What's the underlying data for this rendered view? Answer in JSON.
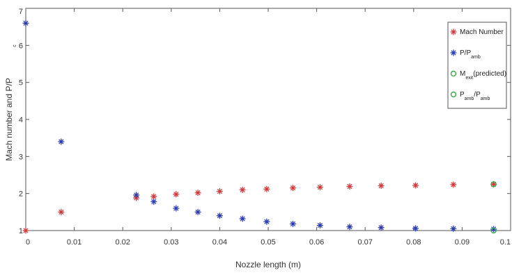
{
  "chart_data": {
    "type": "scatter",
    "xlabel": "Nozzle length (m)",
    "ylabel": "Mach number and P/P",
    "ylabel_sub": "c",
    "xlim": [
      0,
      0.1
    ],
    "ylim": [
      1,
      7
    ],
    "x_ticks": [
      "0",
      "0.01",
      "0.02",
      "0.03",
      "0.04",
      "0.05",
      "0.06",
      "0.07",
      "0.08",
      "0.09",
      "0.1"
    ],
    "y_ticks": [
      "1",
      "2",
      "3",
      "4",
      "5",
      "6",
      "7"
    ],
    "legend_position": "top-right",
    "series": [
      {
        "name": "Mach Number",
        "marker": "star",
        "color": "#d03a3a",
        "points": [
          [
            0.0,
            1.0
          ],
          [
            0.0073,
            1.5
          ],
          [
            0.0228,
            1.88
          ],
          [
            0.0264,
            1.92
          ],
          [
            0.031,
            1.98
          ],
          [
            0.0355,
            2.02
          ],
          [
            0.04,
            2.06
          ],
          [
            0.0447,
            2.1
          ],
          [
            0.0497,
            2.12
          ],
          [
            0.0551,
            2.15
          ],
          [
            0.0607,
            2.17
          ],
          [
            0.0668,
            2.19
          ],
          [
            0.0733,
            2.21
          ],
          [
            0.0804,
            2.22
          ],
          [
            0.0882,
            2.24
          ],
          [
            0.0965,
            2.25
          ]
        ]
      },
      {
        "name": "P/P",
        "name_sub": "amb",
        "marker": "star",
        "color": "#2a3bb0",
        "points": [
          [
            0.0,
            6.6
          ],
          [
            0.0073,
            3.4
          ],
          [
            0.0228,
            1.96
          ],
          [
            0.0264,
            1.78
          ],
          [
            0.031,
            1.6
          ],
          [
            0.0355,
            1.5
          ],
          [
            0.04,
            1.4
          ],
          [
            0.0447,
            1.32
          ],
          [
            0.0497,
            1.24
          ],
          [
            0.0551,
            1.18
          ],
          [
            0.0607,
            1.14
          ],
          [
            0.0668,
            1.1
          ],
          [
            0.0733,
            1.08
          ],
          [
            0.0804,
            1.06
          ],
          [
            0.0882,
            1.05
          ],
          [
            0.0965,
            1.04
          ]
        ]
      },
      {
        "name": "M",
        "name_sub": "exit",
        "name_suffix": "(predicted)",
        "marker": "circle",
        "color": "#3aaa4a",
        "points": [
          [
            0.0965,
            2.25
          ]
        ]
      },
      {
        "name": "P",
        "name_sub": "amb",
        "name_suffix": "/P",
        "name_suffix_sub": "amb",
        "marker": "circle",
        "color": "#3aaa4a",
        "points": [
          [
            0.0965,
            1.0
          ]
        ]
      }
    ]
  }
}
